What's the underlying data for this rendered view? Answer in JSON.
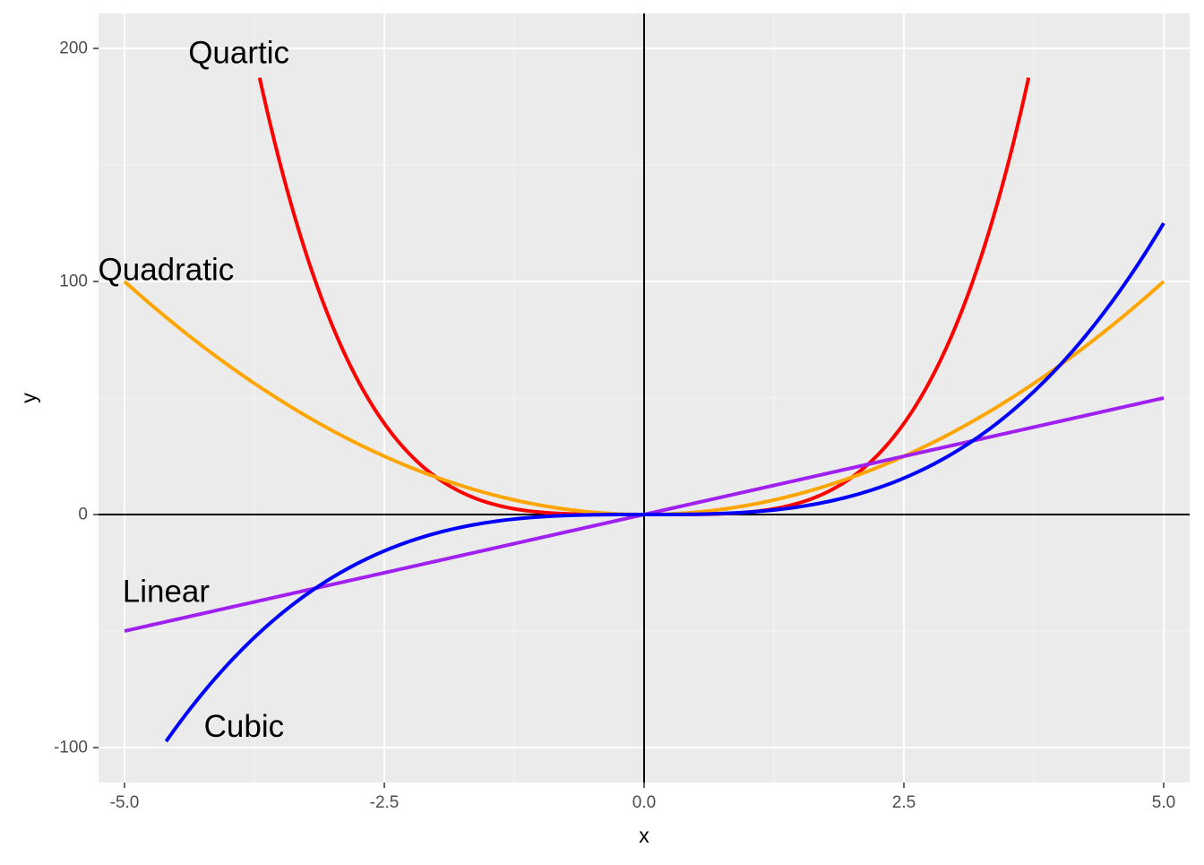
{
  "chart_data": {
    "type": "line",
    "title": "",
    "xlabel": "x",
    "ylabel": "y",
    "xlim": [
      -5.25,
      5.25
    ],
    "ylim": [
      -115,
      215
    ],
    "xticks": [
      -5.0,
      -2.5,
      0.0,
      2.5,
      5.0
    ],
    "xtick_labels": [
      "-5.0",
      "-2.5",
      "0.0",
      "2.5",
      "5.0"
    ],
    "yticks": [
      -100,
      0,
      100,
      200
    ],
    "ytick_labels": [
      "-100",
      "0",
      "100",
      "200"
    ],
    "grid": true,
    "reference_lines": {
      "x": 0,
      "y": 0
    },
    "series": [
      {
        "name": "Quartic",
        "formula": "x^4",
        "x_range": [
          -3.7,
          3.7
        ],
        "color": "#ff0000",
        "label": {
          "text": "Quartic",
          "x": -3.9,
          "y": 198
        }
      },
      {
        "name": "Quadratic",
        "formula": "4x^2",
        "x_range": [
          -5,
          5
        ],
        "color": "#ffa500",
        "label": {
          "text": "Quadratic",
          "x": -4.6,
          "y": 105
        }
      },
      {
        "name": "Linear",
        "formula": "10x",
        "x_range": [
          -5,
          5
        ],
        "color": "#a020f0",
        "label": {
          "text": "Linear",
          "x": -4.6,
          "y": -33
        }
      },
      {
        "name": "Cubic",
        "formula": "x^3",
        "x_range": [
          -4.6,
          5
        ],
        "color": "#0000ff",
        "label": {
          "text": "Cubic",
          "x": -3.85,
          "y": -91
        }
      }
    ],
    "colors": {
      "panel_background": "#ebebeb",
      "grid_major": "#ffffff",
      "grid_minor": "#f5f5f5",
      "reference_line": "#000000"
    }
  }
}
